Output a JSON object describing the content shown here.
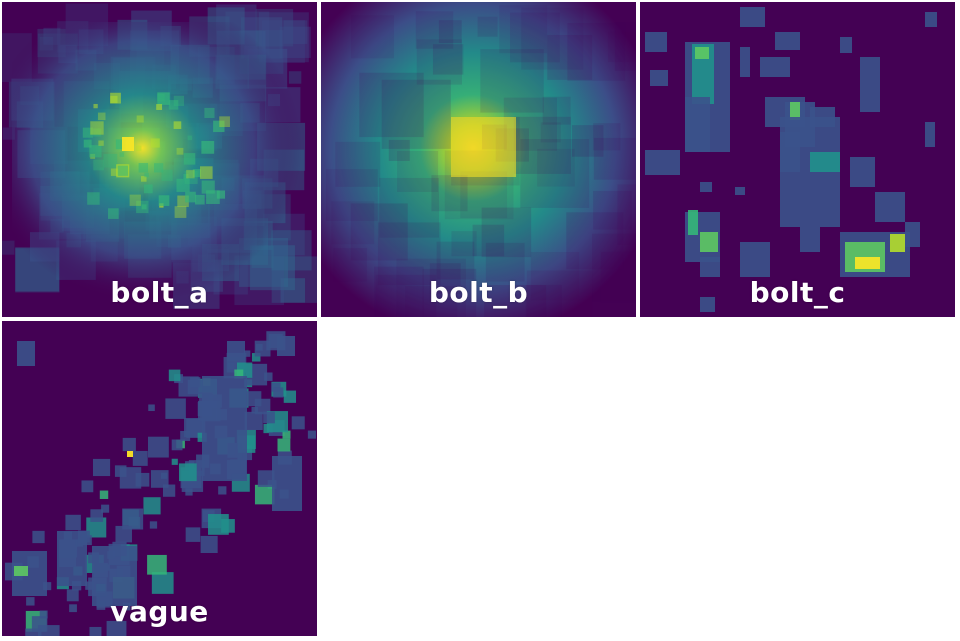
{
  "tiles": [
    {
      "label": "bolt_a",
      "pattern": "noisy-central-blob"
    },
    {
      "label": "bolt_b",
      "pattern": "smooth-central-blob"
    },
    {
      "label": "bolt_c",
      "pattern": "sparse-clustered-rectangles"
    },
    {
      "label": "vague",
      "pattern": "scattered-small-squares"
    }
  ],
  "colors": {
    "background": "#440154",
    "colormap": "viridis",
    "low": "#3b528b",
    "mid": "#21918c",
    "high": "#5ec962",
    "peak": "#fde725"
  }
}
